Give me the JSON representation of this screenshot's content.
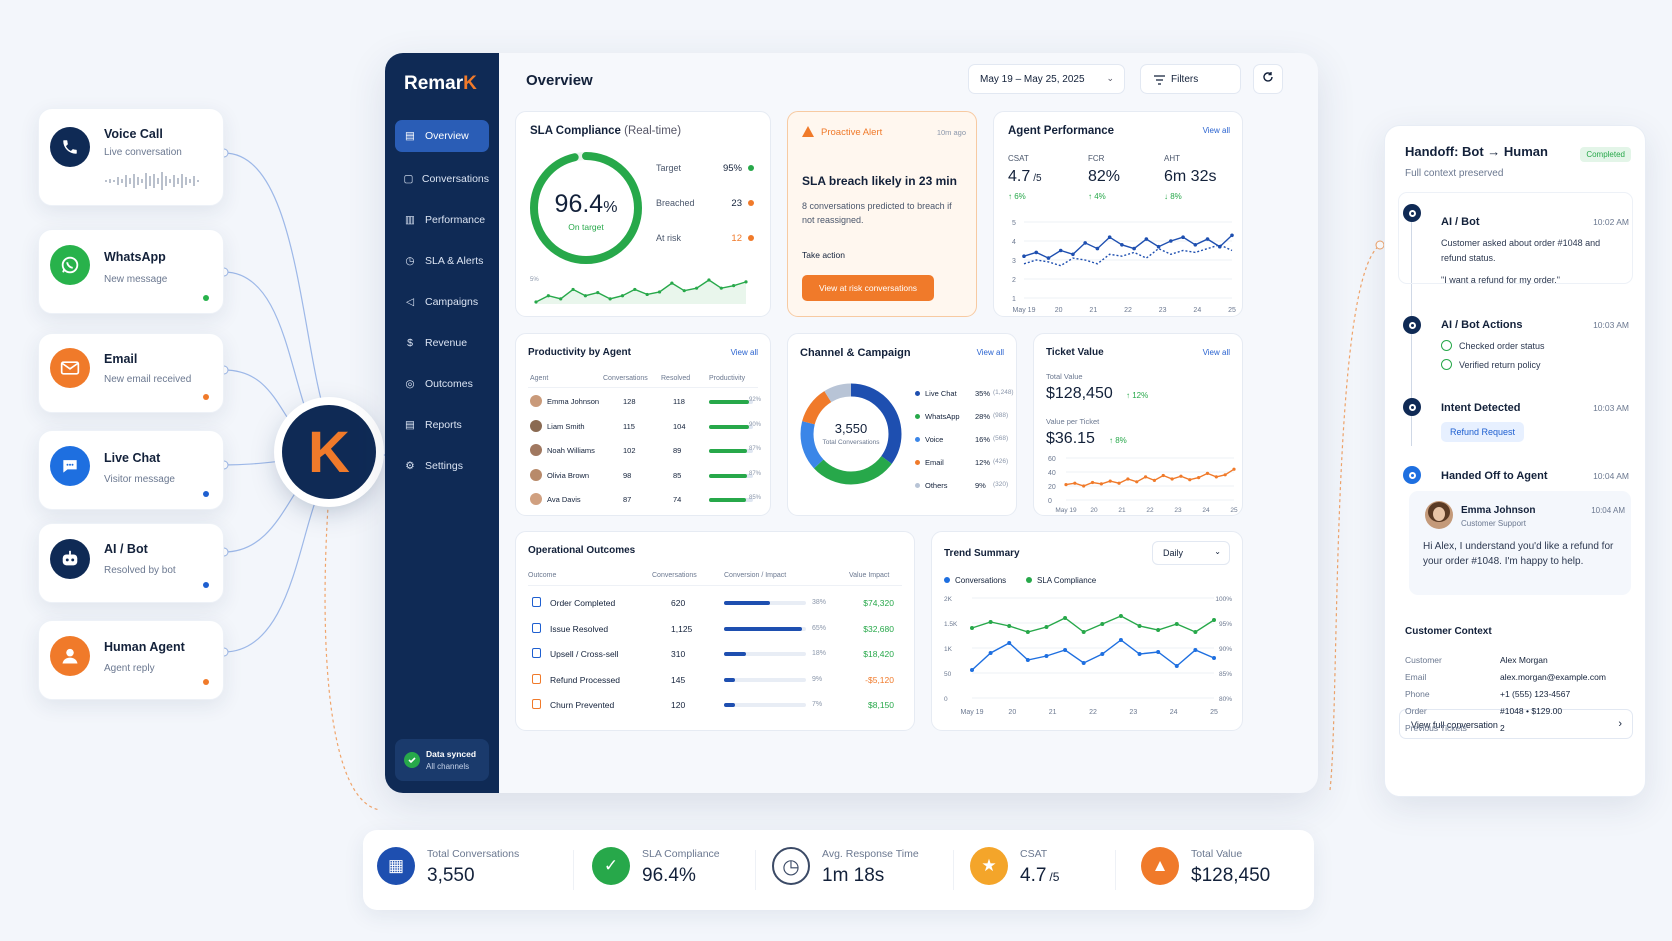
{
  "channels": [
    {
      "title": "Voice Call",
      "sub": "Live conversation",
      "icon": "phone-icon",
      "color": "#0f2a55",
      "dot": ""
    },
    {
      "title": "WhatsApp",
      "sub": "New message",
      "icon": "whatsapp-icon",
      "color": "#28b24b",
      "dot": "#28b24b"
    },
    {
      "title": "Email",
      "sub": "New email received",
      "icon": "mail-icon",
      "color": "#f07a2a",
      "dot": "#f07a2a"
    },
    {
      "title": "Live Chat",
      "sub": "Visitor message",
      "icon": "chat-icon",
      "color": "#1e6fe0",
      "dot": "#1e5fd0"
    },
    {
      "title": "AI / Bot",
      "sub": "Resolved by bot",
      "icon": "bot-icon",
      "color": "#0f2a55",
      "dot": "#1e5fd0"
    },
    {
      "title": "Human Agent",
      "sub": "Agent reply",
      "icon": "user-icon",
      "color": "#f07a2a",
      "dot": "#f07a2a"
    }
  ],
  "brand": {
    "name_main": "Remar",
    "name_accent": "K",
    "hub_letter": "K"
  },
  "sidebar": {
    "items": [
      "Overview",
      "Conversations",
      "Performance",
      "SLA & Alerts",
      "Campaigns",
      "Revenue",
      "Outcomes",
      "Reports",
      "Settings"
    ],
    "sync_title": "Data synced",
    "sync_sub": "All channels"
  },
  "header": {
    "title": "Overview",
    "date_range": "May 19 – May 25, 2025",
    "filters": "Filters"
  },
  "sla": {
    "title": "SLA Compliance",
    "title_suffix": "(Real-time)",
    "value": "96.4",
    "unit": "%",
    "caption": "On target",
    "percent": 96.4,
    "rows": [
      {
        "label": "Target",
        "value": "95%",
        "color": "#27a84a"
      },
      {
        "label": "Breached",
        "value": "23",
        "color": "#f07a2a"
      },
      {
        "label": "At risk",
        "value": "12",
        "color": "#f07a2a"
      }
    ],
    "spark_label": "5%",
    "spark": [
      3,
      4,
      3.5,
      5,
      4,
      4.5,
      3.5,
      4,
      5,
      4.2,
      4.6,
      6,
      4.8,
      5.2,
      6.5,
      5.2,
      5.6,
      6.2
    ]
  },
  "alert": {
    "label": "Proactive Alert",
    "time": "10m ago",
    "headline": "SLA breach likely in 23 min",
    "body": "8 conversations predicted to breach if not reassigned.",
    "take": "Take action",
    "button": "View at risk conversations"
  },
  "agent_perf": {
    "title": "Agent Performance",
    "view_all": "View all",
    "metrics": [
      {
        "label": "CSAT",
        "value": "4.7",
        "suffix": "/5",
        "delta": "↑ 6%",
        "dcolor": "#27a84a"
      },
      {
        "label": "FCR",
        "value": "82%",
        "suffix": "",
        "delta": "↑ 4%",
        "dcolor": "#27a84a"
      },
      {
        "label": "AHT",
        "value": "6m 32s",
        "suffix": "",
        "delta": "↓ 8%",
        "dcolor": "#27a84a"
      }
    ],
    "y_ticks": [
      "5",
      "4",
      "3",
      "2",
      "1"
    ],
    "x_ticks": [
      "May 19",
      "20",
      "21",
      "22",
      "23",
      "24",
      "25"
    ],
    "series_a": [
      3.2,
      3.4,
      3.1,
      3.5,
      3.3,
      3.9,
      3.6,
      4.2,
      3.8,
      3.6,
      4.1,
      3.7,
      4.0,
      4.2,
      3.8,
      4.1,
      3.7,
      4.3
    ],
    "series_b": [
      2.8,
      3.0,
      2.9,
      2.7,
      3.1,
      3.0,
      2.8,
      3.3,
      3.2,
      3.4,
      3.1,
      3.6,
      3.3,
      3.5,
      3.4,
      3.6,
      3.8,
      3.5
    ]
  },
  "productivity": {
    "title": "Productivity by Agent",
    "view_all": "View all",
    "cols": [
      "Agent",
      "Conversations",
      "Resolved",
      "Productivity"
    ],
    "rows": [
      {
        "name": "Emma Johnson",
        "conv": "128",
        "res": "118",
        "pct": "92%",
        "frac": 0.92
      },
      {
        "name": "Liam Smith",
        "conv": "115",
        "res": "104",
        "pct": "90%",
        "frac": 0.9
      },
      {
        "name": "Noah Williams",
        "conv": "102",
        "res": "89",
        "pct": "87%",
        "frac": 0.87
      },
      {
        "name": "Olivia Brown",
        "conv": "98",
        "res": "85",
        "pct": "87%",
        "frac": 0.87
      },
      {
        "name": "Ava Davis",
        "conv": "87",
        "res": "74",
        "pct": "85%",
        "frac": 0.85
      }
    ]
  },
  "channel_campaign": {
    "title": "Channel & Campaign",
    "view_all": "View all",
    "total": "3,550",
    "total_label": "Total Conversations",
    "items": [
      {
        "name": "Live Chat",
        "pct": "35%",
        "count": "(1,248)",
        "value": 35,
        "color": "#1e4fb0"
      },
      {
        "name": "WhatsApp",
        "pct": "28%",
        "count": "(988)",
        "value": 28,
        "color": "#27a84a"
      },
      {
        "name": "Voice",
        "pct": "16%",
        "count": "(568)",
        "value": 16,
        "color": "#3b86e8"
      },
      {
        "name": "Email",
        "pct": "12%",
        "count": "(426)",
        "value": 12,
        "color": "#f07a2a"
      },
      {
        "name": "Others",
        "pct": "9%",
        "count": "(320)",
        "value": 9,
        "color": "#b8c4d6"
      }
    ]
  },
  "ticket": {
    "title": "Ticket Value",
    "view_all": "View all",
    "total_label": "Total Value",
    "total": "$128,450",
    "total_delta": "↑ 12%",
    "per_label": "Value per Ticket",
    "per": "$36.15",
    "per_delta": "↑ 8%",
    "y_ticks": [
      "60",
      "40",
      "20",
      "0"
    ],
    "x_ticks": [
      "May 19",
      "20",
      "21",
      "22",
      "23",
      "24",
      "25"
    ],
    "series": [
      22,
      24,
      20,
      25,
      23,
      27,
      24,
      30,
      26,
      33,
      28,
      35,
      30,
      34,
      29,
      32,
      38,
      33,
      36,
      44
    ]
  },
  "outcomes": {
    "title": "Operational Outcomes",
    "cols": [
      "Outcome",
      "Conversations",
      "Conversion / Impact",
      "Value Impact"
    ],
    "rows": [
      {
        "name": "Order Completed",
        "conv": "620",
        "pct": "38%",
        "frac": 0.38,
        "value": "$74,320",
        "color": "#1e4fb0",
        "vcolor": "#27a84a"
      },
      {
        "name": "Issue Resolved",
        "conv": "1,125",
        "pct": "65%",
        "frac": 0.65,
        "value": "$32,680",
        "color": "#1e4fb0",
        "vcolor": "#27a84a"
      },
      {
        "name": "Upsell / Cross-sell",
        "conv": "310",
        "pct": "18%",
        "frac": 0.18,
        "value": "$18,420",
        "color": "#1e4fb0",
        "vcolor": "#27a84a"
      },
      {
        "name": "Refund Processed",
        "conv": "145",
        "pct": "9%",
        "frac": 0.09,
        "value": "-$5,120",
        "color": "#1e4fb0",
        "vcolor": "#f07a2a"
      },
      {
        "name": "Churn Prevented",
        "conv": "120",
        "pct": "7%",
        "frac": 0.07,
        "value": "$8,150",
        "color": "#1e4fb0",
        "vcolor": "#27a84a"
      }
    ]
  },
  "trend": {
    "title": "Trend Summary",
    "period": "Daily",
    "legend": [
      "Conversations",
      "SLA Compliance"
    ],
    "left_ticks": [
      "2K",
      "1.5K",
      "1K",
      "50",
      "0"
    ],
    "right_ticks": [
      "100%",
      "95%",
      "90%",
      "85%",
      "80%"
    ],
    "x_ticks": [
      "May 19",
      "20",
      "21",
      "22",
      "23",
      "24",
      "25"
    ],
    "conversations": [
      0.28,
      0.45,
      0.55,
      0.38,
      0.42,
      0.48,
      0.35,
      0.44,
      0.58,
      0.44,
      0.46,
      0.32,
      0.48,
      0.4
    ],
    "sla": [
      0.7,
      0.76,
      0.72,
      0.66,
      0.71,
      0.8,
      0.66,
      0.74,
      0.82,
      0.72,
      0.68,
      0.74,
      0.66,
      0.78
    ]
  },
  "kpis": [
    {
      "label": "Total Conversations",
      "value": "3,550",
      "suffix": "",
      "icon": "conversations-icon",
      "color": "#1e4fb0"
    },
    {
      "label": "SLA Compliance",
      "value": "96.4%",
      "suffix": "",
      "icon": "check-icon",
      "color": "#27a84a"
    },
    {
      "label": "Avg. Response Time",
      "value": "1m 18s",
      "suffix": "",
      "icon": "clock-icon",
      "color": "#ffffff"
    },
    {
      "label": "CSAT",
      "value": "4.7",
      "suffix": "/5",
      "icon": "star-icon",
      "color": "#f4a52a"
    },
    {
      "label": "Total Value",
      "value": "$128,450",
      "suffix": "",
      "icon": "chart-up-icon",
      "color": "#f07a2a"
    }
  ],
  "handoff": {
    "title": "Handoff: Bot → Human",
    "badge": "Completed",
    "sub": "Full context preserved",
    "e1_label": "AI / Bot",
    "e1_time": "10:02 AM",
    "e1_text": "Customer asked about order #1048 and refund status.",
    "e1_quote": "\"I want a refund for my order.\"",
    "e2_label": "AI / Bot Actions",
    "e2_time": "10:03 AM",
    "e2_checks": [
      "Checked order status",
      "Verified return policy"
    ],
    "e3_label": "Intent Detected",
    "e3_time": "10:03 AM",
    "e3_tag": "Refund Request",
    "e4_label": "Handed Off to Agent",
    "e4_time": "10:04 AM",
    "agent_name": "Emma Johnson",
    "agent_role": "Customer Support",
    "agent_time": "10:04 AM",
    "agent_msg": "Hi Alex, I understand you'd like a refund for your order #1048. I'm happy to help.",
    "ctx_title": "Customer Context",
    "ctx": [
      {
        "k": "Customer",
        "v": "Alex Morgan"
      },
      {
        "k": "Email",
        "v": "alex.morgan@example.com"
      },
      {
        "k": "Phone",
        "v": "+1 (555) 123-4567"
      },
      {
        "k": "Order",
        "v": "#1048  •  $129.00"
      },
      {
        "k": "Previous Tickets",
        "v": "2"
      }
    ],
    "link": "View full conversation"
  }
}
